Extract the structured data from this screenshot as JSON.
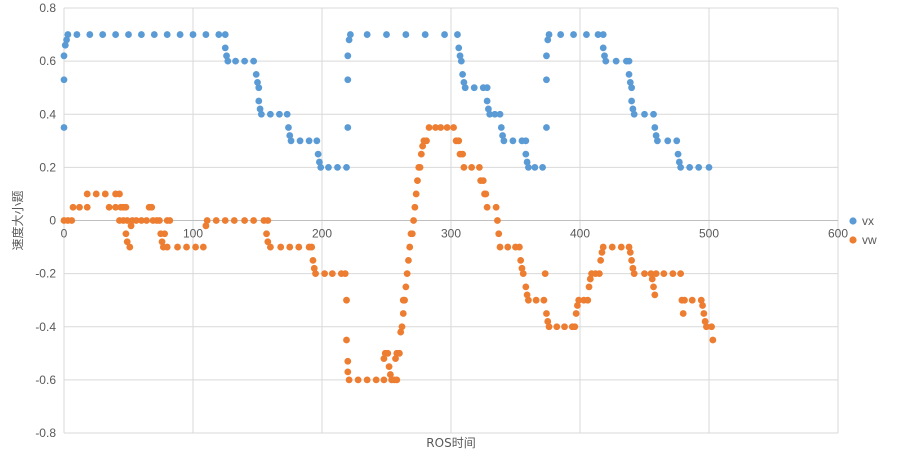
{
  "chart_data": {
    "type": "scatter",
    "xlabel": "ROS时间",
    "ylabel": "速度大小题",
    "xlim": [
      0,
      600
    ],
    "ylim": [
      -0.8,
      0.8
    ],
    "xticks": [
      "0",
      "100",
      "200",
      "300",
      "400",
      "500",
      "600"
    ],
    "yticks": [
      "0.8",
      "0.6",
      "0.4",
      "0.2",
      "0",
      "-0.2",
      "-0.4",
      "-0.6",
      "-0.8"
    ],
    "grid": true,
    "legend_position": "right",
    "series": [
      {
        "name": "vx",
        "color": "#5B9BD5",
        "points": [
          [
            0,
            0.35
          ],
          [
            0,
            0.53
          ],
          [
            0,
            0.62
          ],
          [
            1,
            0.66
          ],
          [
            2,
            0.68
          ],
          [
            3,
            0.7
          ],
          [
            10,
            0.7
          ],
          [
            20,
            0.7
          ],
          [
            30,
            0.7
          ],
          [
            40,
            0.7
          ],
          [
            50,
            0.7
          ],
          [
            60,
            0.7
          ],
          [
            70,
            0.7
          ],
          [
            80,
            0.7
          ],
          [
            90,
            0.7
          ],
          [
            100,
            0.7
          ],
          [
            110,
            0.7
          ],
          [
            120,
            0.7
          ],
          [
            125,
            0.7
          ],
          [
            125,
            0.65
          ],
          [
            126,
            0.62
          ],
          [
            127,
            0.6
          ],
          [
            133,
            0.6
          ],
          [
            140,
            0.6
          ],
          [
            147,
            0.6
          ],
          [
            149,
            0.55
          ],
          [
            150,
            0.52
          ],
          [
            151,
            0.5
          ],
          [
            151,
            0.45
          ],
          [
            152,
            0.42
          ],
          [
            153,
            0.4
          ],
          [
            160,
            0.4
          ],
          [
            167,
            0.4
          ],
          [
            173,
            0.4
          ],
          [
            174,
            0.35
          ],
          [
            175,
            0.32
          ],
          [
            176,
            0.3
          ],
          [
            183,
            0.3
          ],
          [
            190,
            0.3
          ],
          [
            196,
            0.3
          ],
          [
            197,
            0.25
          ],
          [
            198,
            0.22
          ],
          [
            199,
            0.2
          ],
          [
            205,
            0.2
          ],
          [
            212,
            0.2
          ],
          [
            219,
            0.2
          ],
          [
            220,
            0.35
          ],
          [
            220,
            0.53
          ],
          [
            220,
            0.62
          ],
          [
            221,
            0.68
          ],
          [
            222,
            0.7
          ],
          [
            235,
            0.7
          ],
          [
            250,
            0.7
          ],
          [
            265,
            0.7
          ],
          [
            280,
            0.7
          ],
          [
            295,
            0.7
          ],
          [
            305,
            0.7
          ],
          [
            306,
            0.65
          ],
          [
            307,
            0.62
          ],
          [
            308,
            0.6
          ],
          [
            309,
            0.55
          ],
          [
            310,
            0.52
          ],
          [
            311,
            0.5
          ],
          [
            318,
            0.5
          ],
          [
            325,
            0.5
          ],
          [
            328,
            0.5
          ],
          [
            328,
            0.45
          ],
          [
            329,
            0.42
          ],
          [
            330,
            0.4
          ],
          [
            334,
            0.4
          ],
          [
            338,
            0.4
          ],
          [
            339,
            0.35
          ],
          [
            340,
            0.32
          ],
          [
            341,
            0.3
          ],
          [
            348,
            0.3
          ],
          [
            355,
            0.3
          ],
          [
            358,
            0.3
          ],
          [
            358,
            0.25
          ],
          [
            359,
            0.22
          ],
          [
            360,
            0.2
          ],
          [
            365,
            0.2
          ],
          [
            371,
            0.2
          ],
          [
            374,
            0.35
          ],
          [
            374,
            0.53
          ],
          [
            374,
            0.62
          ],
          [
            375,
            0.68
          ],
          [
            376,
            0.7
          ],
          [
            385,
            0.7
          ],
          [
            395,
            0.7
          ],
          [
            405,
            0.7
          ],
          [
            414,
            0.7
          ],
          [
            418,
            0.7
          ],
          [
            418,
            0.65
          ],
          [
            419,
            0.62
          ],
          [
            420,
            0.6
          ],
          [
            428,
            0.6
          ],
          [
            436,
            0.6
          ],
          [
            438,
            0.6
          ],
          [
            438,
            0.55
          ],
          [
            439,
            0.52
          ],
          [
            440,
            0.5
          ],
          [
            440,
            0.45
          ],
          [
            441,
            0.42
          ],
          [
            442,
            0.4
          ],
          [
            450,
            0.4
          ],
          [
            457,
            0.4
          ],
          [
            458,
            0.35
          ],
          [
            459,
            0.32
          ],
          [
            460,
            0.3
          ],
          [
            468,
            0.3
          ],
          [
            475,
            0.3
          ],
          [
            476,
            0.25
          ],
          [
            477,
            0.22
          ],
          [
            478,
            0.2
          ],
          [
            485,
            0.2
          ],
          [
            492,
            0.2
          ],
          [
            500,
            0.2
          ]
        ]
      },
      {
        "name": "vw",
        "color": "#ED7D31",
        "points": [
          [
            0,
            0
          ],
          [
            3,
            0
          ],
          [
            6,
            0
          ],
          [
            7,
            0.05
          ],
          [
            12,
            0.05
          ],
          [
            18,
            0.05
          ],
          [
            18,
            0.1
          ],
          [
            25,
            0.1
          ],
          [
            32,
            0.1
          ],
          [
            40,
            0.1
          ],
          [
            43,
            0.1
          ],
          [
            35,
            0.05
          ],
          [
            40,
            0.05
          ],
          [
            44,
            0.05
          ],
          [
            46,
            0.05
          ],
          [
            48,
            0.05
          ],
          [
            43,
            0
          ],
          [
            46,
            0
          ],
          [
            49,
            0
          ],
          [
            48,
            -0.05
          ],
          [
            49,
            -0.08
          ],
          [
            51,
            -0.1
          ],
          [
            52,
            -0.02
          ],
          [
            53,
            0
          ],
          [
            56,
            0
          ],
          [
            60,
            0
          ],
          [
            64,
            0
          ],
          [
            66,
            0.05
          ],
          [
            68,
            0.05
          ],
          [
            69,
            0
          ],
          [
            72,
            0
          ],
          [
            74,
            0
          ],
          [
            75,
            -0.05
          ],
          [
            76,
            -0.08
          ],
          [
            77,
            -0.1
          ],
          [
            78,
            -0.05
          ],
          [
            80,
            0
          ],
          [
            82,
            0
          ],
          [
            80,
            -0.1
          ],
          [
            88,
            -0.1
          ],
          [
            95,
            -0.1
          ],
          [
            102,
            -0.1
          ],
          [
            108,
            -0.1
          ],
          [
            110,
            -0.02
          ],
          [
            111,
            0
          ],
          [
            118,
            0
          ],
          [
            125,
            0
          ],
          [
            132,
            0
          ],
          [
            140,
            0
          ],
          [
            147,
            0
          ],
          [
            155,
            0
          ],
          [
            158,
            0
          ],
          [
            157,
            -0.05
          ],
          [
            158,
            -0.08
          ],
          [
            160,
            -0.1
          ],
          [
            168,
            -0.1
          ],
          [
            175,
            -0.1
          ],
          [
            182,
            -0.1
          ],
          [
            190,
            -0.1
          ],
          [
            192,
            -0.1
          ],
          [
            193,
            -0.15
          ],
          [
            194,
            -0.18
          ],
          [
            195,
            -0.2
          ],
          [
            202,
            -0.2
          ],
          [
            208,
            -0.2
          ],
          [
            215,
            -0.2
          ],
          [
            218,
            -0.2
          ],
          [
            219,
            -0.3
          ],
          [
            219,
            -0.45
          ],
          [
            220,
            -0.53
          ],
          [
            220,
            -0.57
          ],
          [
            221,
            -0.6
          ],
          [
            228,
            -0.6
          ],
          [
            235,
            -0.6
          ],
          [
            242,
            -0.6
          ],
          [
            248,
            -0.6
          ],
          [
            248,
            -0.52
          ],
          [
            249,
            -0.5
          ],
          [
            251,
            -0.5
          ],
          [
            252,
            -0.55
          ],
          [
            253,
            -0.58
          ],
          [
            254,
            -0.6
          ],
          [
            256,
            -0.6
          ],
          [
            258,
            -0.6
          ],
          [
            257,
            -0.52
          ],
          [
            258,
            -0.5
          ],
          [
            260,
            -0.5
          ],
          [
            261,
            -0.42
          ],
          [
            262,
            -0.4
          ],
          [
            263,
            -0.35
          ],
          [
            263,
            -0.3
          ],
          [
            264,
            -0.3
          ],
          [
            265,
            -0.25
          ],
          [
            266,
            -0.2
          ],
          [
            267,
            -0.15
          ],
          [
            268,
            -0.1
          ],
          [
            269,
            -0.05
          ],
          [
            270,
            -0.05
          ],
          [
            271,
            0
          ],
          [
            272,
            0.05
          ],
          [
            273,
            0.1
          ],
          [
            274,
            0.15
          ],
          [
            275,
            0.2
          ],
          [
            276,
            0.2
          ],
          [
            277,
            0.25
          ],
          [
            278,
            0.28
          ],
          [
            279,
            0.3
          ],
          [
            281,
            0.3
          ],
          [
            283,
            0.35
          ],
          [
            288,
            0.35
          ],
          [
            292,
            0.35
          ],
          [
            297,
            0.35
          ],
          [
            302,
            0.35
          ],
          [
            304,
            0.3
          ],
          [
            306,
            0.3
          ],
          [
            307,
            0.25
          ],
          [
            309,
            0.25
          ],
          [
            310,
            0.2
          ],
          [
            316,
            0.2
          ],
          [
            322,
            0.2
          ],
          [
            323,
            0.15
          ],
          [
            325,
            0.15
          ],
          [
            326,
            0.1
          ],
          [
            327,
            0.1
          ],
          [
            328,
            0.05
          ],
          [
            335,
            0.05
          ],
          [
            336,
            0
          ],
          [
            337,
            -0.05
          ],
          [
            338,
            -0.1
          ],
          [
            344,
            -0.1
          ],
          [
            350,
            -0.1
          ],
          [
            353,
            -0.1
          ],
          [
            354,
            -0.15
          ],
          [
            355,
            -0.18
          ],
          [
            356,
            -0.2
          ],
          [
            358,
            -0.25
          ],
          [
            359,
            -0.28
          ],
          [
            360,
            -0.3
          ],
          [
            366,
            -0.3
          ],
          [
            372,
            -0.3
          ],
          [
            373,
            -0.2
          ],
          [
            374,
            -0.35
          ],
          [
            375,
            -0.38
          ],
          [
            376,
            -0.4
          ],
          [
            382,
            -0.4
          ],
          [
            388,
            -0.4
          ],
          [
            394,
            -0.4
          ],
          [
            396,
            -0.4
          ],
          [
            397,
            -0.35
          ],
          [
            398,
            -0.32
          ],
          [
            399,
            -0.3
          ],
          [
            403,
            -0.3
          ],
          [
            406,
            -0.3
          ],
          [
            407,
            -0.25
          ],
          [
            408,
            -0.22
          ],
          [
            409,
            -0.2
          ],
          [
            412,
            -0.2
          ],
          [
            415,
            -0.2
          ],
          [
            416,
            -0.15
          ],
          [
            417,
            -0.12
          ],
          [
            418,
            -0.1
          ],
          [
            425,
            -0.1
          ],
          [
            432,
            -0.1
          ],
          [
            438,
            -0.1
          ],
          [
            439,
            -0.12
          ],
          [
            440,
            -0.15
          ],
          [
            441,
            -0.18
          ],
          [
            442,
            -0.2
          ],
          [
            450,
            -0.2
          ],
          [
            455,
            -0.2
          ],
          [
            456,
            -0.22
          ],
          [
            457,
            -0.25
          ],
          [
            458,
            -0.28
          ],
          [
            459,
            -0.2
          ],
          [
            465,
            -0.2
          ],
          [
            472,
            -0.2
          ],
          [
            478,
            -0.2
          ],
          [
            479,
            -0.3
          ],
          [
            480,
            -0.35
          ],
          [
            481,
            -0.3
          ],
          [
            487,
            -0.3
          ],
          [
            494,
            -0.3
          ],
          [
            495,
            -0.32
          ],
          [
            496,
            -0.35
          ],
          [
            497,
            -0.38
          ],
          [
            498,
            -0.4
          ],
          [
            502,
            -0.4
          ],
          [
            503,
            -0.45
          ]
        ]
      }
    ]
  }
}
